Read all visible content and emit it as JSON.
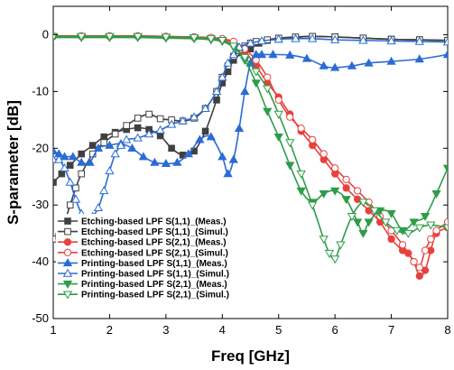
{
  "chart_data": {
    "type": "line",
    "title": "",
    "xlabel": "Freq [GHz]",
    "ylabel": "S-parameter [dB]",
    "xlim": [
      1,
      8
    ],
    "ylim": [
      -50,
      5
    ],
    "xticks": [
      1,
      2,
      3,
      4,
      5,
      6,
      7,
      8
    ],
    "yticks": [
      0,
      -10,
      -20,
      -30,
      -40,
      -50
    ],
    "grid": false,
    "legend_position": "bottom-left",
    "series": [
      {
        "name": "Etching-based LPF S(1,1)_(Meas.)",
        "color": "#404040",
        "marker": "square",
        "filled": true,
        "x": [
          1.0,
          1.15,
          1.3,
          1.5,
          1.7,
          1.9,
          2.1,
          2.3,
          2.5,
          2.7,
          2.9,
          3.1,
          3.3,
          3.5,
          3.7,
          3.9,
          4.0,
          4.1,
          4.2,
          4.35,
          4.5,
          4.65,
          4.8,
          5.0,
          5.3,
          5.6,
          6.0,
          6.5,
          7.0,
          7.5,
          8.0
        ],
        "y": [
          -26,
          -24.5,
          -23,
          -21,
          -19.5,
          -18,
          -17.2,
          -16.7,
          -16.4,
          -16.7,
          -17.8,
          -20,
          -21.2,
          -20.5,
          -17,
          -11.5,
          -8.5,
          -6.5,
          -4.5,
          -3.2,
          -2.5,
          -1.5,
          -1.0,
          -0.8,
          -0.5,
          -0.3,
          -0.4,
          -0.6,
          -0.8,
          -0.9,
          -1.0
        ]
      },
      {
        "name": "Etching-based LPF S(1,1)_(Simul.)",
        "color": "#404040",
        "marker": "square",
        "filled": false,
        "x": [
          1.0,
          1.1,
          1.2,
          1.3,
          1.4,
          1.5,
          1.7,
          1.9,
          2.1,
          2.3,
          2.5,
          2.7,
          2.9,
          3.1,
          3.3,
          3.5,
          3.7,
          3.9,
          4.0,
          4.1,
          4.2,
          4.3,
          4.4,
          4.5,
          4.6,
          4.8,
          5.0,
          5.3,
          5.6,
          6.0,
          6.5,
          7.0,
          7.5,
          8.0
        ],
        "y": [
          -36,
          -35.5,
          -33,
          -30,
          -27,
          -24.5,
          -21,
          -19,
          -17.5,
          -16,
          -14.7,
          -14,
          -14.8,
          -15,
          -15.2,
          -14.7,
          -13,
          -10,
          -7.5,
          -5.5,
          -3.8,
          -2.8,
          -2,
          -1.5,
          -1.2,
          -0.9,
          -0.6,
          -0.4,
          -0.3,
          -0.4,
          -0.6,
          -0.8,
          -0.9,
          -1.0
        ]
      },
      {
        "name": "Etching-based LPF S(2,1)_(Meas.)",
        "color": "#e8413c",
        "marker": "circle",
        "filled": true,
        "x": [
          1.0,
          1.5,
          2.0,
          2.5,
          3.0,
          3.5,
          3.8,
          4.0,
          4.2,
          4.4,
          4.6,
          4.8,
          5.0,
          5.2,
          5.4,
          5.6,
          5.8,
          6.0,
          6.2,
          6.4,
          6.6,
          6.8,
          7.0,
          7.2,
          7.3,
          7.4,
          7.5,
          7.6,
          7.7,
          7.8,
          8.0
        ],
        "y": [
          -0.3,
          -0.3,
          -0.3,
          -0.3,
          -0.4,
          -0.5,
          -0.6,
          -0.9,
          -1.5,
          -3,
          -5.5,
          -8.5,
          -11,
          -14,
          -17,
          -19.5,
          -22,
          -24.5,
          -27,
          -29,
          -31,
          -33,
          -36,
          -38,
          -38.5,
          -40,
          -42.5,
          -41.5,
          -38,
          -35,
          -34
        ]
      },
      {
        "name": "Etching-based LPF S(2,1)_(Simul.)",
        "color": "#e8413c",
        "marker": "circle",
        "filled": false,
        "x": [
          1.0,
          1.5,
          2.0,
          2.5,
          3.0,
          3.5,
          3.8,
          4.0,
          4.2,
          4.4,
          4.6,
          4.8,
          5.0,
          5.2,
          5.4,
          5.6,
          5.8,
          6.0,
          6.2,
          6.4,
          6.6,
          6.8,
          7.0,
          7.2,
          7.4,
          7.5,
          7.6,
          7.7,
          7.8,
          8.0
        ],
        "y": [
          -0.2,
          -0.2,
          -0.2,
          -0.2,
          -0.3,
          -0.4,
          -0.5,
          -0.7,
          -1.2,
          -2.5,
          -4.5,
          -7.5,
          -11.5,
          -14.5,
          -16.5,
          -18.5,
          -21,
          -23.5,
          -25.5,
          -27.5,
          -29.5,
          -32,
          -34.5,
          -37,
          -40,
          -41,
          -38,
          -36,
          -34.5,
          -33
        ]
      },
      {
        "name": "Printing-based LPF S(1,1)_(Meas.)",
        "color": "#2b6cd4",
        "marker": "triangle-up",
        "filled": true,
        "x": [
          1.0,
          1.1,
          1.2,
          1.35,
          1.5,
          1.65,
          1.8,
          2.0,
          2.2,
          2.4,
          2.6,
          2.8,
          3.0,
          3.2,
          3.4,
          3.6,
          3.8,
          4.0,
          4.1,
          4.2,
          4.3,
          4.4,
          4.5,
          4.6,
          4.7,
          4.9,
          5.2,
          5.5,
          5.8,
          6.0,
          6.3,
          6.6,
          7.0,
          7.5,
          8.0
        ],
        "y": [
          -20.5,
          -21,
          -21.5,
          -21.5,
          -22.5,
          -22.5,
          -20,
          -19.5,
          -19.2,
          -20,
          -21.5,
          -22.5,
          -22.7,
          -22.5,
          -21,
          -18.5,
          -18,
          -21.5,
          -24.5,
          -22,
          -16.5,
          -10,
          -5,
          -3.5,
          -3.5,
          -3.5,
          -3.6,
          -4.2,
          -5.5,
          -5.8,
          -5.5,
          -5,
          -4.7,
          -4.3,
          -3.5
        ]
      },
      {
        "name": "Printing-based LPF S(1,1)_(Simul.)",
        "color": "#2b6cd4",
        "marker": "triangle-up",
        "filled": false,
        "x": [
          1.0,
          1.1,
          1.2,
          1.3,
          1.4,
          1.5,
          1.6,
          1.7,
          1.8,
          1.9,
          2.0,
          2.1,
          2.2,
          2.3,
          2.5,
          2.7,
          2.9,
          3.1,
          3.3,
          3.5,
          3.7,
          3.9,
          4.0,
          4.1,
          4.2,
          4.3,
          4.5,
          4.7,
          5.0,
          5.3,
          5.6,
          6.0,
          6.5,
          7.0,
          7.5,
          8.0
        ],
        "y": [
          -22,
          -22,
          -23.5,
          -26,
          -29,
          -31.5,
          -32.5,
          -32,
          -30.5,
          -27.5,
          -24,
          -21,
          -19.5,
          -18.5,
          -18.2,
          -17.5,
          -16.8,
          -15.8,
          -15.2,
          -14.5,
          -13,
          -10,
          -7.5,
          -5,
          -3.5,
          -2.2,
          -1.5,
          -1.1,
          -0.8,
          -0.7,
          -0.7,
          -0.9,
          -1.0,
          -1.1,
          -1.2,
          -1.3
        ]
      },
      {
        "name": "Printing-based LPF S(2,1)_(Meas.)",
        "color": "#2e9c4a",
        "marker": "triangle-down",
        "filled": true,
        "x": [
          1.0,
          1.5,
          2.0,
          2.5,
          3.0,
          3.5,
          3.8,
          4.0,
          4.2,
          4.4,
          4.6,
          4.8,
          5.0,
          5.2,
          5.4,
          5.6,
          5.8,
          6.0,
          6.2,
          6.4,
          6.5,
          6.6,
          6.8,
          7.0,
          7.2,
          7.4,
          7.6,
          7.8,
          8.0
        ],
        "y": [
          -0.5,
          -0.5,
          -0.5,
          -0.5,
          -0.6,
          -0.7,
          -0.9,
          -1.2,
          -2.2,
          -4.5,
          -8.5,
          -13.5,
          -18,
          -23,
          -27.5,
          -29.5,
          -28,
          -27.5,
          -29,
          -33,
          -35,
          -33,
          -31,
          -31.5,
          -34.5,
          -33,
          -32,
          -28,
          -23.5
        ]
      },
      {
        "name": "Printing-based LPF S(2,1)_(Simul.)",
        "color": "#2e9c4a",
        "marker": "triangle-down",
        "filled": false,
        "x": [
          1.0,
          1.5,
          2.0,
          2.5,
          3.0,
          3.5,
          3.8,
          4.0,
          4.2,
          4.4,
          4.6,
          4.8,
          5.0,
          5.2,
          5.4,
          5.6,
          5.8,
          5.9,
          6.0,
          6.1,
          6.3,
          6.5,
          6.7,
          6.9,
          7.1,
          7.3,
          7.5,
          7.7,
          8.0
        ],
        "y": [
          -0.3,
          -0.3,
          -0.3,
          -0.3,
          -0.4,
          -0.5,
          -0.7,
          -1.0,
          -2,
          -4,
          -6.5,
          -9.5,
          -14,
          -19,
          -24.5,
          -30,
          -36,
          -38.5,
          -39.5,
          -37,
          -32,
          -29.5,
          -31,
          -33,
          -34.5,
          -35,
          -34,
          -33.5,
          -34
        ]
      }
    ]
  }
}
